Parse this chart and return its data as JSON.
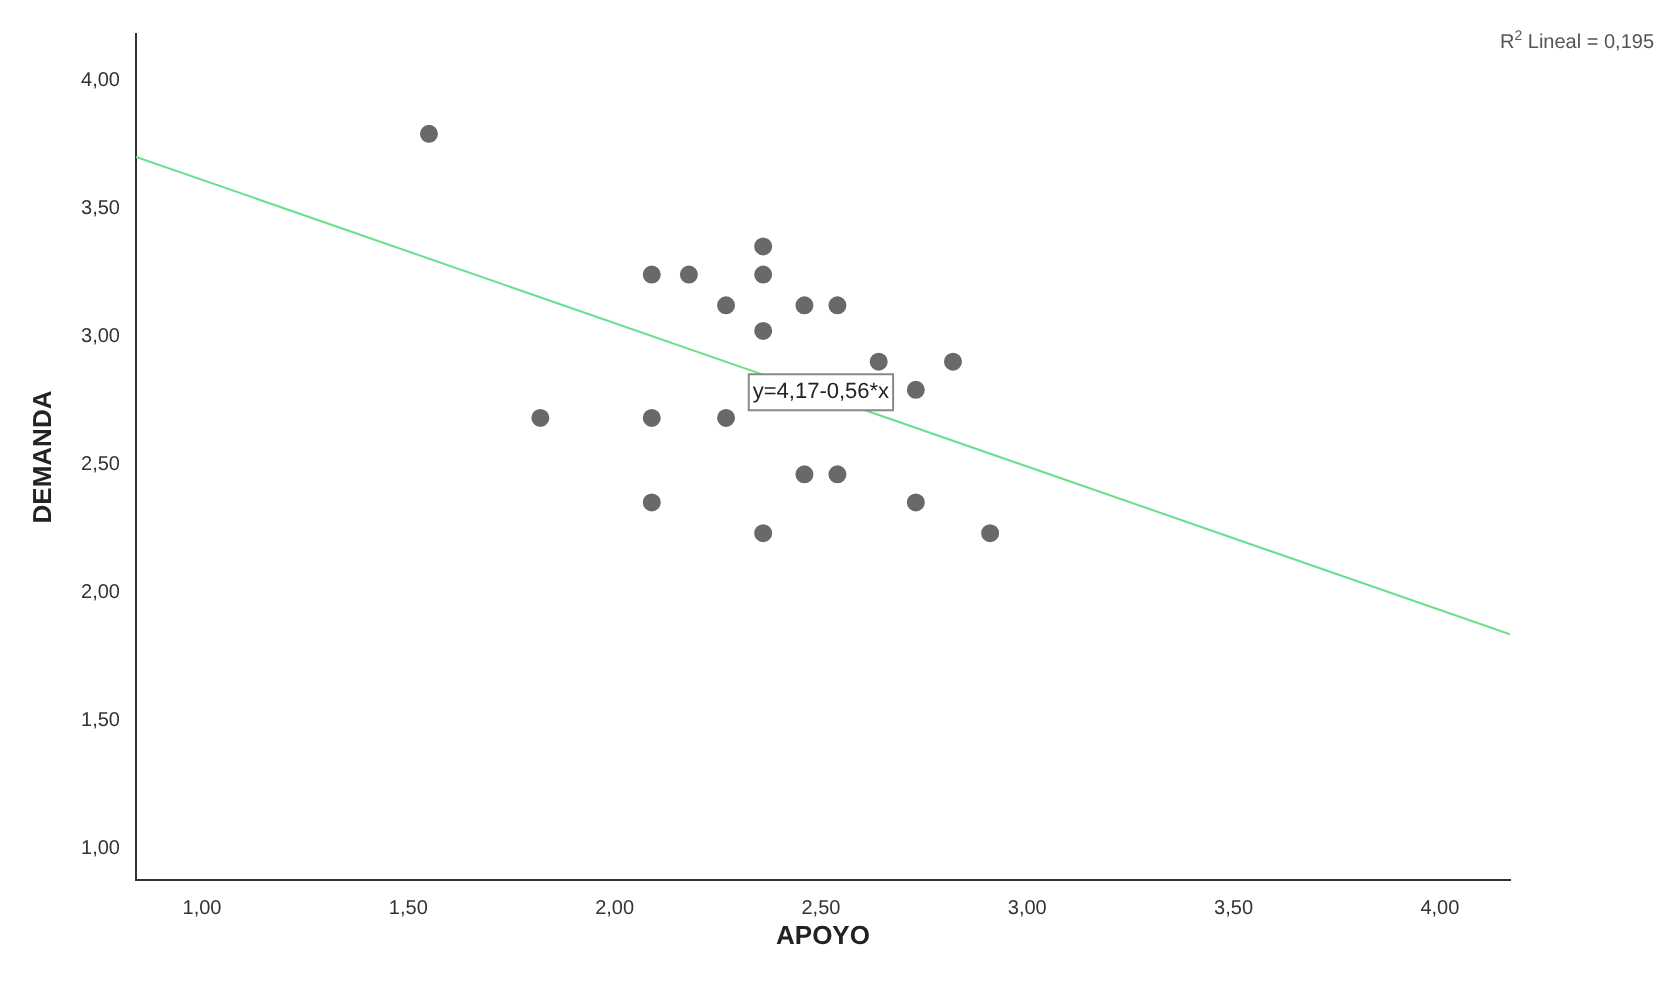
{
  "chart_data": {
    "type": "scatter",
    "xlabel": "APOYO",
    "ylabel": "DEMANDA",
    "xlim": [
      0.84,
      4.17
    ],
    "ylim": [
      0.875,
      4.18
    ],
    "xticks": [
      {
        "value": 1,
        "label": "1,00"
      },
      {
        "value": 1.5,
        "label": "1,50"
      },
      {
        "value": 2,
        "label": "2,00"
      },
      {
        "value": 2.5,
        "label": "2,50"
      },
      {
        "value": 3,
        "label": "3,00"
      },
      {
        "value": 3.5,
        "label": "3,50"
      },
      {
        "value": 4,
        "label": "4,00"
      }
    ],
    "yticks": [
      {
        "value": 1,
        "label": "1,00"
      },
      {
        "value": 1.5,
        "label": "1,50"
      },
      {
        "value": 2,
        "label": "2,00"
      },
      {
        "value": 2.5,
        "label": "2,50"
      },
      {
        "value": 3,
        "label": "3,00"
      },
      {
        "value": 3.5,
        "label": "3,50"
      },
      {
        "value": 4,
        "label": "4,00"
      }
    ],
    "grid": false,
    "legend": false,
    "marker": "circle",
    "series": [
      {
        "color": "#696969",
        "x": [
          1.55,
          2.09,
          2.18,
          2.36,
          2.36,
          2.27,
          2.46,
          2.54,
          2.36,
          2.64,
          2.82,
          2.73,
          1.82,
          2.09,
          2.27,
          2.46,
          2.54,
          2.09,
          2.73,
          2.36,
          2.91
        ],
        "values": [
          3.79,
          3.24,
          3.24,
          3.35,
          3.24,
          3.12,
          3.12,
          3.12,
          3.02,
          2.9,
          2.9,
          2.79,
          2.68,
          2.68,
          2.68,
          2.46,
          2.46,
          2.35,
          2.35,
          2.23,
          2.23
        ]
      },
      {
        "type": "line",
        "color": "#66e08c",
        "marker": "none",
        "x": [
          0.84,
          4.17
        ],
        "values": [
          3.7,
          1.835
        ]
      }
    ],
    "annotations": [
      "R$^{2}$ Lineal = 0,195",
      {
        "text": "y=4,17-0,56*x",
        "x": 2.5,
        "y": 2.78
      }
    ]
  }
}
